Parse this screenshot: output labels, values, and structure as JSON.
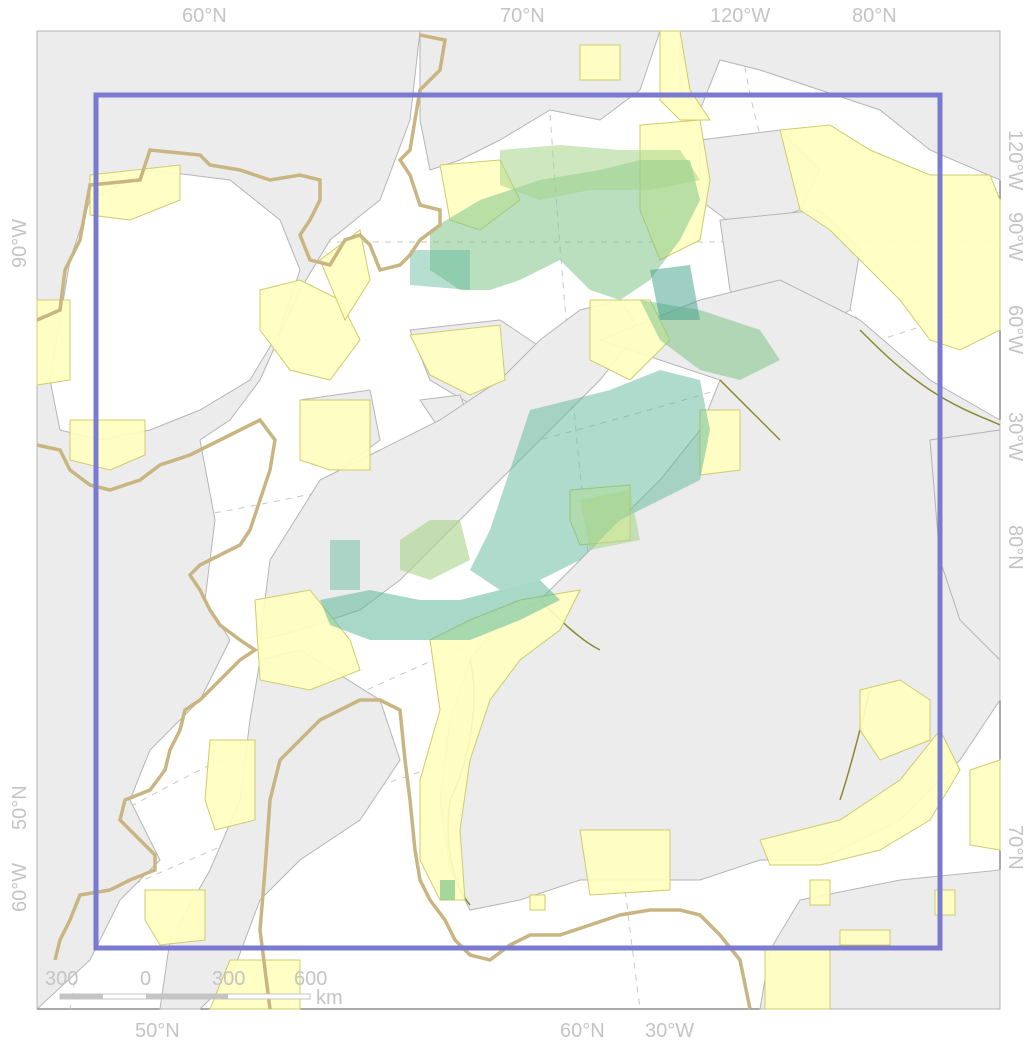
{
  "map": {
    "graticule_labels": {
      "top": [
        "60°N",
        "70°N",
        "120°W",
        "80°N"
      ],
      "bottom": [
        "50°N",
        "60°N",
        "30°W"
      ],
      "left": [
        "90°W",
        "50°N",
        "60°W"
      ],
      "right": [
        "120°W",
        "90°W",
        "60°W",
        "30°W",
        "80°N",
        "70°N"
      ]
    },
    "scale_bar": {
      "ticks": [
        "300",
        "0",
        "300",
        "600"
      ],
      "unit": "km"
    },
    "colors": {
      "land": "#ececec",
      "land_outline": "#b0b0b0",
      "ocean": "#ffffff",
      "protected_area_fill": "#fefec0",
      "protected_area_outline": "#d4d27a",
      "study_region_outline": "#c8b582",
      "extent_box": "#7a7ad0",
      "habitat_gradient": [
        "#5fb89a",
        "#7fc48a",
        "#a8d48a"
      ],
      "graticule": "#c4c4c4"
    },
    "icons": [
      "scale-bar-icon"
    ]
  }
}
